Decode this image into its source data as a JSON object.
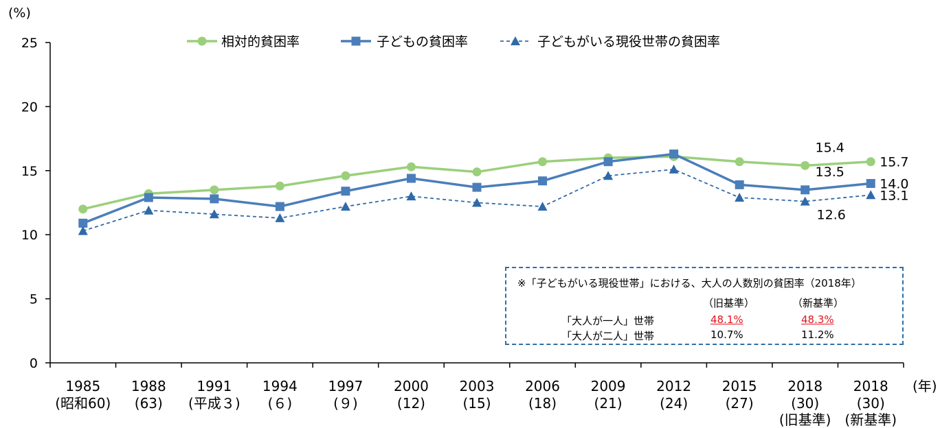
{
  "chart_data": {
    "type": "line",
    "y_unit": "(%)",
    "x_unit": "(年)",
    "ylim": [
      0,
      25
    ],
    "yticks": [
      0,
      5,
      10,
      15,
      20,
      25
    ],
    "x": [
      "1985",
      "1988",
      "1991",
      "1994",
      "1997",
      "2000",
      "2003",
      "2006",
      "2009",
      "2012",
      "2015",
      "2018",
      "2018"
    ],
    "x_sub": [
      "(昭和60)",
      "(63)",
      "(平成３)",
      "(６)",
      "(９)",
      "(12)",
      "(15)",
      "(18)",
      "(21)",
      "(24)",
      "(27)",
      "(30)",
      "(30)"
    ],
    "x_sub2": [
      "",
      "",
      "",
      "",
      "",
      "",
      "",
      "",
      "",
      "",
      "",
      "(旧基準)",
      "(新基準)"
    ],
    "series": [
      {
        "name": "相対的貧困率",
        "color": "#9bcf7c",
        "marker": "circle",
        "dash": false,
        "values": [
          12.0,
          13.2,
          13.5,
          13.8,
          14.6,
          15.3,
          14.9,
          15.7,
          16.0,
          16.1,
          15.7,
          15.4,
          15.7
        ]
      },
      {
        "name": "子どもの貧困率",
        "color": "#4a7eba",
        "marker": "square",
        "dash": false,
        "values": [
          10.9,
          12.9,
          12.8,
          12.2,
          13.4,
          14.4,
          13.7,
          14.2,
          15.7,
          16.3,
          13.9,
          13.5,
          14.0
        ]
      },
      {
        "name": "子どもがいる現役世帯の貧困率",
        "color": "#2f6aa8",
        "marker": "triangle",
        "dash": true,
        "values": [
          10.3,
          11.9,
          11.6,
          11.3,
          12.2,
          13.0,
          12.5,
          12.2,
          14.6,
          15.1,
          12.9,
          12.6,
          13.1
        ]
      }
    ],
    "data_labels": [
      {
        "text": "15.4",
        "series": 0,
        "index": 11,
        "pos": "above"
      },
      {
        "text": "15.7",
        "series": 0,
        "index": 12,
        "pos": "right"
      },
      {
        "text": "13.5",
        "series": 1,
        "index": 11,
        "pos": "above"
      },
      {
        "text": "14.0",
        "series": 1,
        "index": 12,
        "pos": "right"
      },
      {
        "text": "12.6",
        "series": 2,
        "index": 11,
        "pos": "below"
      },
      {
        "text": "13.1",
        "series": 2,
        "index": 12,
        "pos": "right"
      }
    ],
    "legend_position": "top",
    "grid": false
  },
  "note": {
    "title": "※「子どもがいる現役世帯」における、大人の人数別の貧困率（2018年）",
    "col_old": "（旧基準）",
    "col_new": "（新基準）",
    "row1_label": "「大人が一人」世帯",
    "row1_old": "48.1%",
    "row1_new": "48.3%",
    "row2_label": "「大人が二人」世帯",
    "row2_old": "10.7%",
    "row2_new": "11.2%"
  }
}
